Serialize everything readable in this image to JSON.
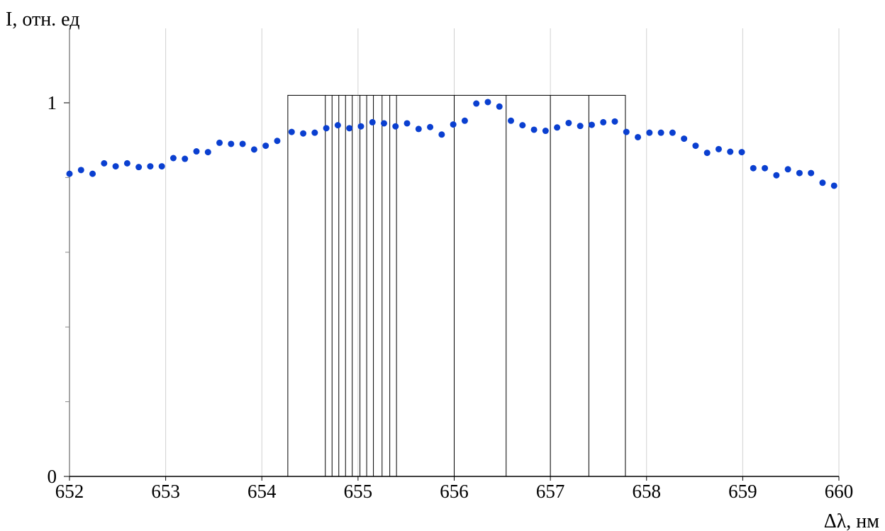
{
  "chart_data": {
    "type": "scatter",
    "xlabel": "Δλ, нм",
    "ylabel": "I, отн. ед",
    "xlim": [
      652,
      660
    ],
    "ylim": [
      0,
      1.05
    ],
    "x_ticks": [
      "652",
      "653",
      "654",
      "655",
      "656",
      "657",
      "658",
      "659",
      "660"
    ],
    "y_ticks": [
      "0",
      "1"
    ],
    "y_minor_ticks": [
      0.2,
      0.4,
      0.6,
      0.8
    ],
    "grid": "vertical",
    "point_color": "#0a3fd0",
    "series": [
      {
        "values": [
          [
            652.0,
            0.81
          ],
          [
            652.12,
            0.82
          ],
          [
            652.24,
            0.81
          ],
          [
            652.36,
            0.838
          ],
          [
            652.48,
            0.83
          ],
          [
            652.6,
            0.838
          ],
          [
            652.72,
            0.828
          ],
          [
            652.84,
            0.83
          ],
          [
            652.96,
            0.83
          ],
          [
            653.08,
            0.852
          ],
          [
            653.2,
            0.85
          ],
          [
            653.32,
            0.87
          ],
          [
            653.44,
            0.868
          ],
          [
            653.56,
            0.893
          ],
          [
            653.68,
            0.89
          ],
          [
            653.8,
            0.89
          ],
          [
            653.92,
            0.875
          ],
          [
            654.04,
            0.885
          ],
          [
            654.16,
            0.898
          ],
          [
            654.31,
            0.922
          ],
          [
            654.43,
            0.918
          ],
          [
            654.55,
            0.92
          ],
          [
            654.67,
            0.932
          ],
          [
            654.79,
            0.94
          ],
          [
            654.91,
            0.932
          ],
          [
            655.03,
            0.937
          ],
          [
            655.15,
            0.948
          ],
          [
            655.27,
            0.945
          ],
          [
            655.39,
            0.937
          ],
          [
            655.51,
            0.945
          ],
          [
            655.63,
            0.93
          ],
          [
            655.75,
            0.935
          ],
          [
            655.87,
            0.915
          ],
          [
            655.99,
            0.942
          ],
          [
            656.11,
            0.952
          ],
          [
            656.23,
            0.998
          ],
          [
            656.35,
            1.002
          ],
          [
            656.47,
            0.99
          ],
          [
            656.59,
            0.952
          ],
          [
            656.71,
            0.94
          ],
          [
            656.83,
            0.928
          ],
          [
            656.95,
            0.925
          ],
          [
            657.07,
            0.934
          ],
          [
            657.19,
            0.946
          ],
          [
            657.31,
            0.938
          ],
          [
            657.43,
            0.941
          ],
          [
            657.55,
            0.948
          ],
          [
            657.67,
            0.95
          ],
          [
            657.79,
            0.922
          ],
          [
            657.91,
            0.908
          ],
          [
            658.03,
            0.92
          ],
          [
            658.15,
            0.92
          ],
          [
            658.27,
            0.92
          ],
          [
            658.39,
            0.904
          ],
          [
            658.51,
            0.885
          ],
          [
            658.63,
            0.866
          ],
          [
            658.75,
            0.876
          ],
          [
            658.87,
            0.869
          ],
          [
            658.99,
            0.868
          ],
          [
            659.11,
            0.825
          ],
          [
            659.23,
            0.825
          ],
          [
            659.35,
            0.806
          ],
          [
            659.47,
            0.822
          ],
          [
            659.59,
            0.812
          ],
          [
            659.71,
            0.812
          ],
          [
            659.83,
            0.786
          ],
          [
            659.95,
            0.778
          ]
        ]
      }
    ],
    "annotations": {
      "box": {
        "x_from": 654.27,
        "x_to": 657.78,
        "y_top": 1.02
      },
      "vertical_lines": [
        654.66,
        654.73,
        654.8,
        654.87,
        654.94,
        655.02,
        655.09,
        655.16,
        655.25,
        655.33,
        655.4,
        656.0,
        656.54,
        657.0,
        657.4
      ]
    }
  }
}
